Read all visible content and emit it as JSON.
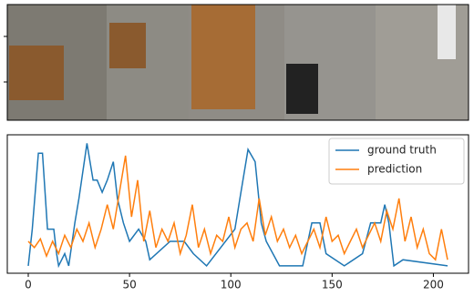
{
  "chart_data": {
    "type": "line",
    "xlim": [
      -10.35,
      217.35
    ],
    "ylim": [
      -0.06,
      1.07
    ],
    "xticks": [
      0,
      50,
      100,
      150,
      200
    ],
    "legend": "upper right",
    "series": [
      {
        "name": "ground truth",
        "color": "#1f77b4",
        "x": [
          0,
          2,
          5,
          7,
          9.5,
          12.6,
          14,
          15,
          18,
          20,
          23,
          25,
          29,
          32,
          34,
          36.5,
          39,
          42,
          44,
          47,
          50,
          54.5,
          58,
          60,
          70,
          77,
          81.5,
          88,
          102,
          105,
          108.5,
          112,
          115,
          117.5,
          124,
          135.5,
          140,
          144,
          147,
          156,
          165,
          169,
          174,
          176,
          178,
          180.5,
          185,
          207
        ],
        "values": [
          0,
          0.3,
          0.92,
          0.92,
          0.3,
          0.3,
          0.1,
          0,
          0.1,
          0,
          0.35,
          0.55,
          1.0,
          0.7,
          0.7,
          0.6,
          0.7,
          0.85,
          0.55,
          0.35,
          0.2,
          0.3,
          0.2,
          0.05,
          0.2,
          0.2,
          0.1,
          0,
          0.3,
          0.6,
          0.95,
          0.85,
          0.35,
          0.2,
          0,
          0,
          0.35,
          0.35,
          0.1,
          0,
          0.1,
          0.35,
          0.35,
          0.5,
          0.35,
          0,
          0.05,
          0
        ]
      },
      {
        "name": "prediction",
        "color": "#ff7f0e",
        "x": [
          0,
          3,
          6,
          9,
          12,
          15,
          18,
          21,
          24,
          27,
          30,
          33,
          36,
          39,
          42,
          45,
          48,
          51,
          54,
          57,
          60,
          63,
          66,
          69,
          72,
          75,
          78,
          81,
          84,
          87,
          90,
          93,
          96,
          99,
          102,
          105,
          108,
          111,
          114,
          117,
          120,
          123,
          126,
          129,
          132,
          135,
          138,
          141,
          144,
          147,
          150,
          153,
          156,
          159,
          162,
          165,
          168,
          171,
          174,
          177,
          180,
          183,
          186,
          189,
          192,
          195,
          198,
          201,
          204,
          207
        ],
        "values": [
          0.2,
          0.15,
          0.22,
          0.08,
          0.2,
          0.1,
          0.25,
          0.15,
          0.3,
          0.2,
          0.35,
          0.15,
          0.3,
          0.5,
          0.3,
          0.6,
          0.9,
          0.4,
          0.7,
          0.2,
          0.45,
          0.15,
          0.3,
          0.2,
          0.35,
          0.1,
          0.25,
          0.5,
          0.15,
          0.3,
          0.1,
          0.25,
          0.2,
          0.4,
          0.15,
          0.3,
          0.35,
          0.2,
          0.55,
          0.25,
          0.4,
          0.2,
          0.3,
          0.15,
          0.25,
          0.1,
          0.2,
          0.3,
          0.15,
          0.4,
          0.2,
          0.25,
          0.1,
          0.2,
          0.3,
          0.15,
          0.25,
          0.35,
          0.2,
          0.45,
          0.3,
          0.55,
          0.2,
          0.4,
          0.15,
          0.3,
          0.1,
          0.05,
          0.3,
          0.05
        ]
      }
    ]
  }
}
